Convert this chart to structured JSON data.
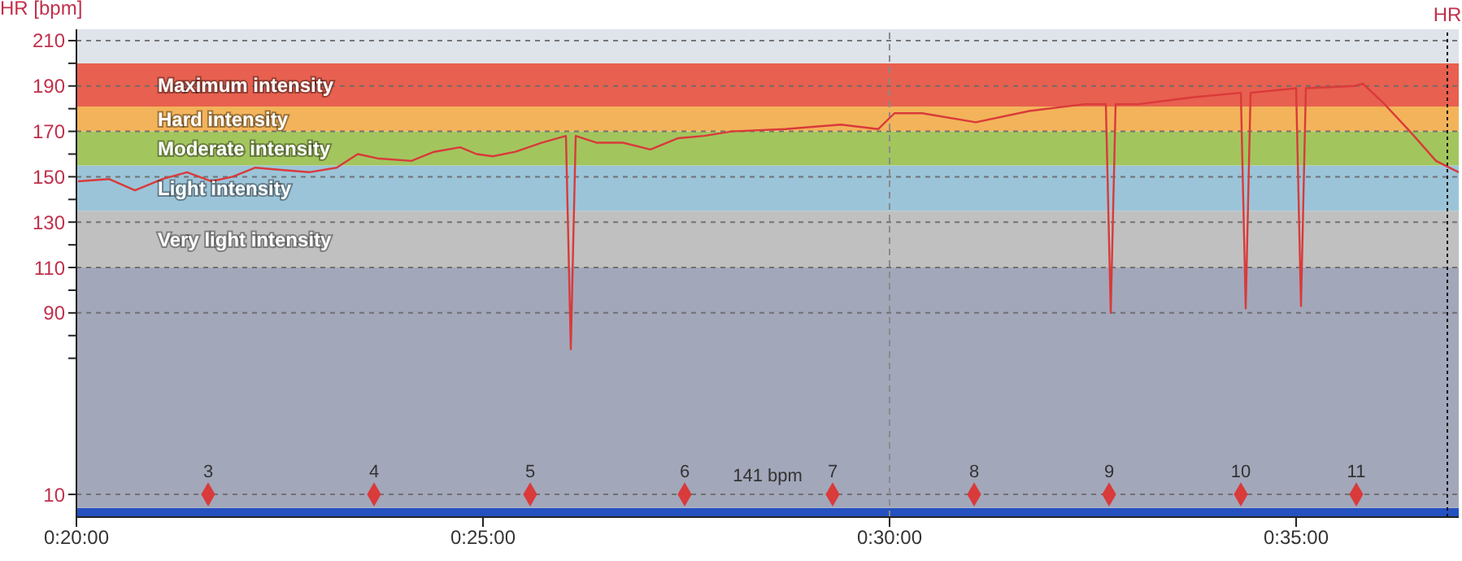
{
  "chart_data": {
    "type": "line",
    "ylabel": "HR [bpm]",
    "xlim": [
      20,
      37
    ],
    "xticks": [
      {
        "value": 20,
        "label": "0:20:00"
      },
      {
        "value": 25,
        "label": "0:25:00"
      },
      {
        "value": 30,
        "label": "0:30:00"
      },
      {
        "value": 35,
        "label": "0:35:00"
      }
    ],
    "ylim": [
      0,
      215
    ],
    "yticks": [
      10,
      {
        "value": 70,
        "label": null
      },
      {
        "value": 80,
        "label": null
      },
      90,
      {
        "value": 100,
        "label": null
      },
      110,
      {
        "value": 120,
        "label": null
      },
      130,
      {
        "value": 140,
        "label": null
      },
      150,
      {
        "value": 160,
        "label": null
      },
      170,
      {
        "value": 180,
        "label": null
      },
      190,
      {
        "value": 200,
        "label": null
      },
      210
    ],
    "grid": "y",
    "marker": "none",
    "line_style": "solid",
    "series": [
      {
        "color": "#d93a3a",
        "x": [
          20.02,
          20.4,
          20.72,
          21.06,
          21.36,
          21.66,
          21.92,
          22.2,
          22.52,
          22.86,
          23.2,
          23.46,
          23.72,
          24.12,
          24.4,
          24.72,
          24.92,
          25.12,
          25.4,
          25.72,
          26.02,
          26.08,
          26.14,
          26.4,
          26.72,
          27.06,
          27.4,
          27.72,
          28.06,
          28.72,
          29.4,
          29.86,
          30.06,
          30.4,
          31.06,
          31.72,
          32.4,
          32.66,
          32.72,
          32.78,
          33.06,
          33.72,
          34.32,
          34.38,
          34.44,
          35.0,
          35.06,
          35.12,
          35.72,
          35.82,
          36.06,
          36.4,
          36.72,
          37.0
        ],
        "values": [
          148,
          149,
          144,
          149,
          152,
          148,
          150,
          154,
          153,
          152,
          154,
          160,
          158,
          157,
          161,
          163,
          160,
          159,
          161,
          165,
          168,
          74,
          168,
          165,
          165,
          162,
          167,
          168,
          170,
          171,
          173,
          171,
          178,
          178,
          174,
          179,
          182,
          182,
          90,
          182,
          182,
          185,
          187,
          92,
          187,
          189,
          93,
          189,
          190,
          191,
          183,
          170,
          157,
          152
        ]
      },
      {
        "type": "scatter",
        "name": "3",
        "marker": "diamond",
        "color": "#d93a3a",
        "x": [
          21.62
        ],
        "values": [
          10
        ]
      },
      {
        "type": "scatter",
        "name": "4",
        "marker": "diamond",
        "color": "#d93a3a",
        "x": [
          23.66
        ],
        "values": [
          10
        ]
      },
      {
        "type": "scatter",
        "name": "5",
        "marker": "diamond",
        "color": "#d93a3a",
        "x": [
          25.58
        ],
        "values": [
          10
        ]
      },
      {
        "type": "scatter",
        "name": "6",
        "marker": "diamond",
        "color": "#d93a3a",
        "x": [
          27.48
        ],
        "values": [
          10
        ]
      },
      {
        "type": "scatter",
        "name": "7",
        "marker": "diamond",
        "color": "#d93a3a",
        "x": [
          29.3
        ],
        "values": [
          10
        ]
      },
      {
        "type": "scatter",
        "name": "8",
        "marker": "diamond",
        "color": "#d93a3a",
        "x": [
          31.04
        ],
        "values": [
          10
        ]
      },
      {
        "type": "scatter",
        "name": "9",
        "marker": "diamond",
        "color": "#d93a3a",
        "x": [
          32.7
        ],
        "values": [
          10
        ]
      },
      {
        "type": "scatter",
        "name": "10",
        "marker": "diamond",
        "color": "#d93a3a",
        "x": [
          34.32
        ],
        "values": [
          10
        ]
      },
      {
        "type": "scatter",
        "name": "11",
        "marker": "diamond",
        "color": "#d93a3a",
        "x": [
          35.74
        ],
        "values": [
          10
        ]
      }
    ],
    "bands": [
      {
        "axis": "y",
        "from": 0,
        "to": 4,
        "color": "#2451c0"
      },
      {
        "axis": "y",
        "from": 4,
        "to": 110,
        "color": "#a3a7ba"
      },
      {
        "axis": "y",
        "from": 110,
        "to": 135,
        "label": "Very light intensity",
        "color": "#c0c0c0"
      },
      {
        "axis": "y",
        "from": 135,
        "to": 155,
        "label": "Light intensity",
        "color": "#9cc4d8"
      },
      {
        "axis": "y",
        "from": 155,
        "to": 170,
        "label": "Moderate intensity",
        "color": "#a3c55e"
      },
      {
        "axis": "y",
        "from": 170,
        "to": 181,
        "label": "Hard intensity",
        "color": "#f3b35a"
      },
      {
        "axis": "y",
        "from": 181,
        "to": 200,
        "label": "Maximum intensity",
        "color": "#e8604f"
      },
      {
        "axis": "y",
        "from": 200,
        "to": 215,
        "color": "#dfe3ea"
      }
    ],
    "ref_lines": [
      {
        "axis": "x",
        "value": 30,
        "color": "#8a8a8a",
        "line_style": "dashed"
      },
      {
        "axis": "x",
        "value": 36.86,
        "label": "HR",
        "color": "#000000",
        "line_style": "dotted"
      }
    ],
    "annotations": [
      "141 bpm"
    ]
  }
}
